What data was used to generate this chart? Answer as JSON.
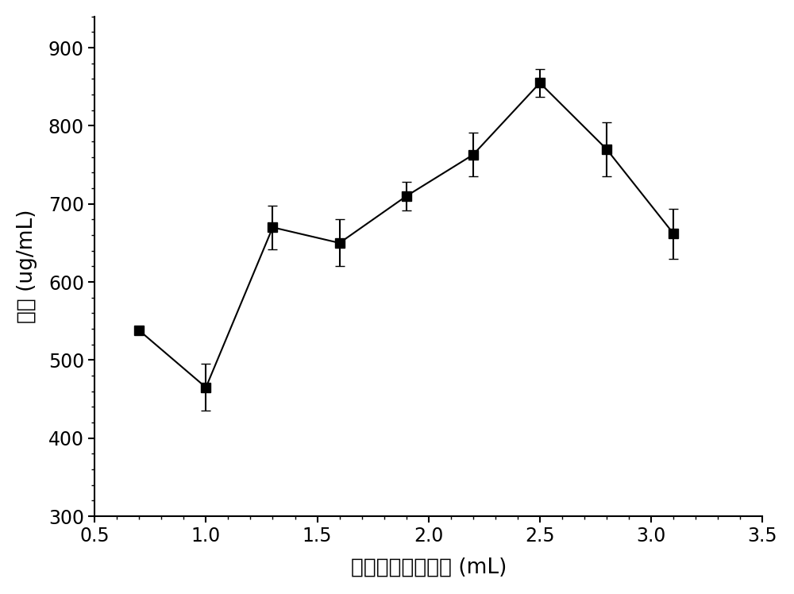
{
  "x": [
    0.7,
    1.0,
    1.3,
    1.6,
    1.9,
    2.2,
    2.5,
    2.8,
    3.1
  ],
  "y": [
    538,
    465,
    670,
    650,
    710,
    763,
    855,
    770,
    662
  ],
  "yerr": [
    0,
    30,
    28,
    30,
    18,
    28,
    18,
    35,
    32
  ],
  "xlim": [
    0.5,
    3.5
  ],
  "ylim": [
    300,
    940
  ],
  "xticks": [
    0.5,
    1.0,
    1.5,
    2.0,
    2.5,
    3.0,
    3.5
  ],
  "yticks": [
    300,
    400,
    500,
    600,
    700,
    800,
    900
  ],
  "xlabel": "种子培养基装液量 (mL)",
  "ylabel": "效价 (ug/mL)",
  "line_color": "#000000",
  "marker": "s",
  "marker_color": "#000000",
  "marker_size": 8,
  "line_width": 1.5,
  "capsize": 4,
  "elinewidth": 1.5,
  "background_color": "#ffffff"
}
